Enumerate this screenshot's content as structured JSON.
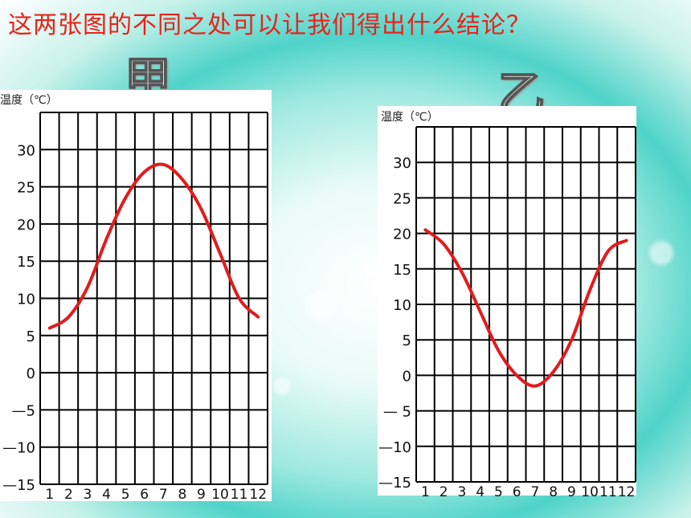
{
  "title": "这两张图的不同之处可以让我们得出什么结论？",
  "chart_data": [
    {
      "type": "line",
      "name_label": "甲",
      "ylabel": "温度（℃）",
      "x": [
        1,
        2,
        3,
        4,
        5,
        6,
        7,
        8,
        9,
        10,
        11,
        12
      ],
      "x_tick_labels": [
        "1",
        "2",
        "3",
        "4",
        "5",
        "6",
        "7",
        "8",
        "9",
        "10",
        "11",
        "12"
      ],
      "y_tick_values": [
        30,
        25,
        20,
        15,
        10,
        5,
        0,
        -5,
        -10,
        -15
      ],
      "y_tick_labels": [
        "30",
        "25",
        "20",
        "15",
        "10",
        "5",
        "0",
        "—5",
        "—10",
        "—15"
      ],
      "ylim": [
        -15,
        35
      ],
      "grid": true,
      "series": [
        {
          "values": [
            6,
            7.5,
            11.5,
            18,
            23.5,
            27,
            28,
            26,
            22,
            16,
            10,
            7.5
          ],
          "color": "#e21b1b"
        }
      ]
    },
    {
      "type": "line",
      "name_label": "乙",
      "ylabel": "温度（℃）",
      "x": [
        1,
        2,
        3,
        4,
        5,
        6,
        7,
        8,
        9,
        10,
        11,
        12
      ],
      "x_tick_labels": [
        "1",
        "2",
        "3",
        "4",
        "5",
        "6",
        "7",
        "8",
        "9",
        "10",
        "11",
        "12"
      ],
      "y_tick_values": [
        30,
        25,
        20,
        15,
        10,
        5,
        0,
        -5,
        -10,
        -15
      ],
      "y_tick_labels": [
        "30",
        "25",
        "20",
        "15",
        "10",
        "5",
        "0",
        "— 5",
        "—10",
        "—15"
      ],
      "ylim": [
        -15,
        35
      ],
      "grid": true,
      "series": [
        {
          "values": [
            20.5,
            18.5,
            14.5,
            9,
            3.5,
            0,
            -1.5,
            0.5,
            5,
            12,
            17.5,
            19
          ],
          "color": "#e21b1b"
        }
      ]
    }
  ]
}
